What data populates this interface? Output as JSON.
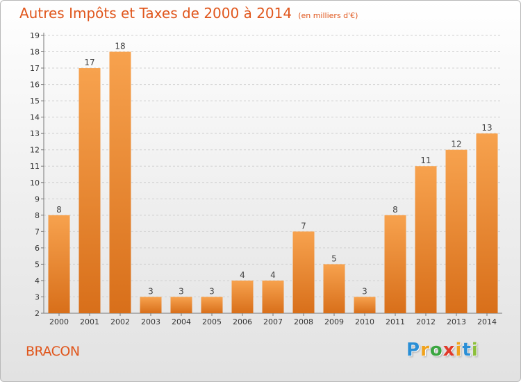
{
  "header": {
    "title": "Autres Impôts et Taxes de 2000 à 2014",
    "unit": "(en milliers d'€)"
  },
  "commune": "BRACON",
  "brand": {
    "letters": [
      "P",
      "r",
      "o",
      "x",
      "i",
      "t",
      "i"
    ],
    "colors": [
      "#2a8fd6",
      "#f0a21c",
      "#3aa640",
      "#e03a2a",
      "#f0a21c",
      "#2a8fd6",
      "#8cbf3a"
    ]
  },
  "colors": {
    "accent": "#e0561c",
    "bar_top": "#f7a24e",
    "bar_bottom": "#d86f1a"
  },
  "chart_data": {
    "type": "bar",
    "title": "Autres Impôts et Taxes de 2000 à 2014",
    "categories": [
      "2000",
      "2001",
      "2002",
      "2003",
      "2004",
      "2005",
      "2006",
      "2007",
      "2008",
      "2009",
      "2010",
      "2011",
      "2012",
      "2013",
      "2014"
    ],
    "values": [
      8,
      17,
      18,
      3,
      3,
      3,
      4,
      4,
      7,
      5,
      3,
      8,
      11,
      12,
      13
    ],
    "ylim": [
      2,
      19
    ],
    "yticks": [
      2,
      3,
      4,
      5,
      6,
      7,
      8,
      9,
      10,
      11,
      12,
      13,
      14,
      15,
      16,
      17,
      18,
      19
    ],
    "grid": "horizontal dashed",
    "xlabel": "",
    "ylabel": ""
  }
}
